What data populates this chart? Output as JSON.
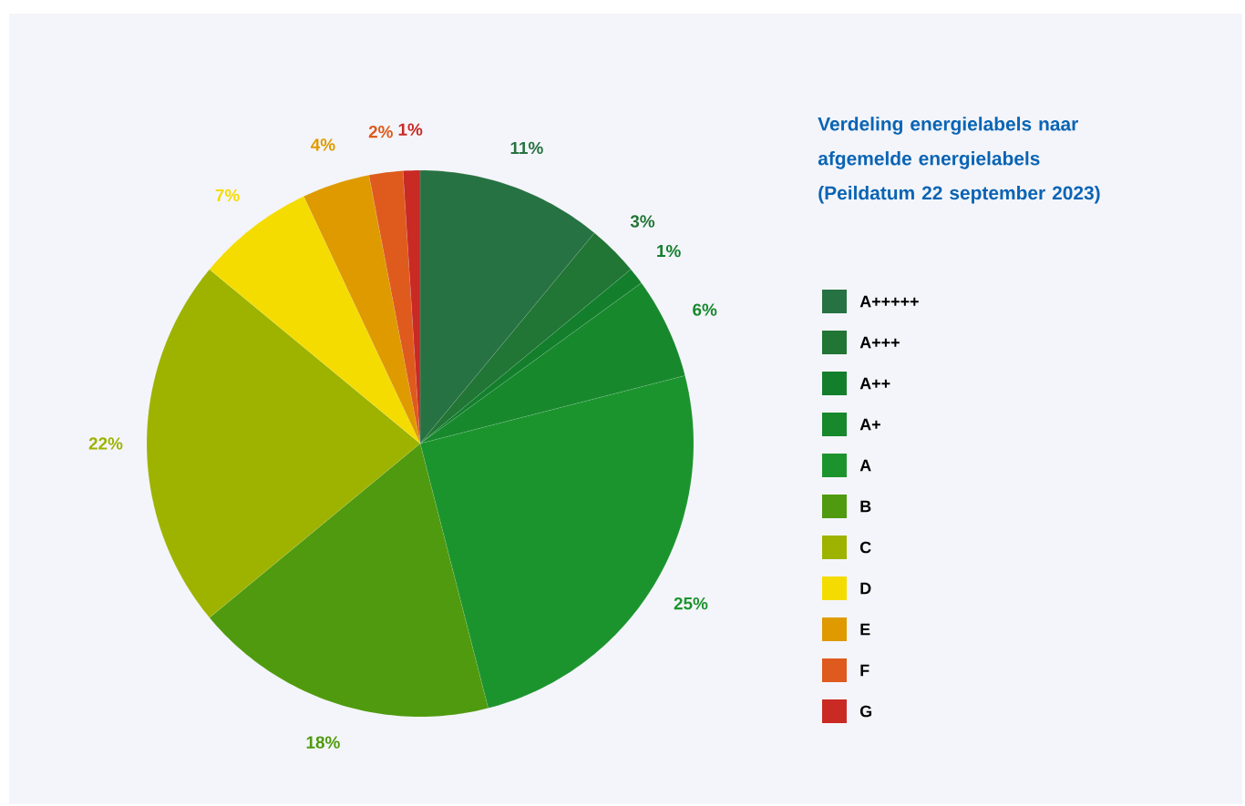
{
  "chart_data": {
    "type": "pie",
    "title": "Verdeling energielabels naar afgemelde energielabels",
    "subtitle": "(Peildatum 22 september 2023)",
    "categories": [
      "A+++++",
      "A+++",
      "A++",
      "A+",
      "A",
      "B",
      "C",
      "D",
      "E",
      "F",
      "G"
    ],
    "values": [
      11,
      3,
      1,
      6,
      25,
      18,
      22,
      7,
      4,
      2,
      1
    ],
    "value_labels": [
      "11%",
      "3%",
      "1%",
      "6%",
      "25%",
      "18%",
      "22%",
      "7%",
      "4%",
      "2%",
      "1%"
    ],
    "colors": [
      "#277242",
      "#217535",
      "#137f2c",
      "#17882c",
      "#1c942e",
      "#4f9a0e",
      "#9db300",
      "#f5dc00",
      "#df9a00",
      "#df5a1d",
      "#c92a24"
    ],
    "data_labels": true,
    "legend": "right"
  }
}
